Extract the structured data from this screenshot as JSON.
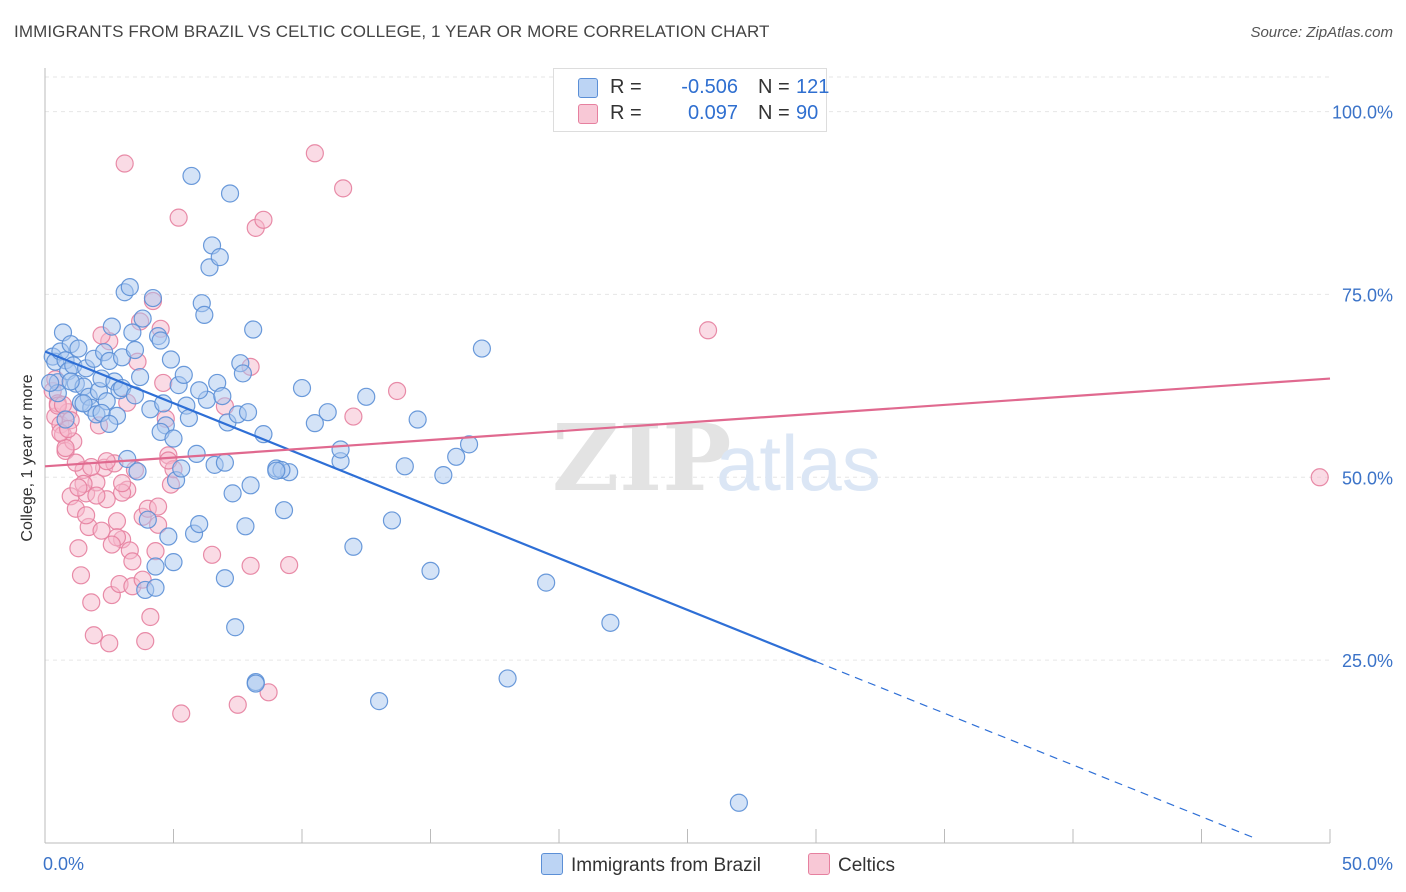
{
  "header": {
    "title": "IMMIGRANTS FROM BRAZIL VS CELTIC COLLEGE, 1 YEAR OR MORE CORRELATION CHART",
    "source": "Source: ZipAtlas.com"
  },
  "watermark": {
    "part1": "ZIP",
    "part2": "atlas"
  },
  "colors": {
    "blue_fill": "#a9c7ef",
    "blue_stroke": "#5b8fd6",
    "blue_line": "#2e6fd6",
    "pink_fill": "#f5b8cb",
    "pink_stroke": "#e6809f",
    "pink_line": "#e0698f",
    "tick_label": "#3b73c8",
    "grid": "#e6e6e6"
  },
  "legend": {
    "r_label": "R =",
    "n_label": "N =",
    "rows": [
      {
        "r": "-0.506",
        "n": "121"
      },
      {
        "r": "0.097",
        "n": "90"
      }
    ]
  },
  "chart_data": {
    "type": "scatter",
    "title": "IMMIGRANTS FROM BRAZIL VS CELTIC COLLEGE, 1 YEAR OR MORE CORRELATION CHART",
    "xlabel": "",
    "ylabel": "College, 1 year or more",
    "xlim": [
      0,
      50
    ],
    "ylim": [
      0,
      105
    ],
    "x_tick_labels": [
      "0.0%",
      "50.0%"
    ],
    "y_ticks": [
      25,
      50,
      75,
      100
    ],
    "y_tick_labels": [
      "25.0%",
      "50.0%",
      "75.0%",
      "100.0%"
    ],
    "grid": true,
    "legend_position": "top-center",
    "series": [
      {
        "name": "Immigrants from Brazil",
        "r": -0.506,
        "n": 121,
        "trend": {
          "x0": 0,
          "y0": 67.2,
          "x1": 30,
          "y1": 24.8,
          "dashed_to_x": 47
        },
        "points": [
          [
            0.3,
            66.5
          ],
          [
            0.4,
            65.8
          ],
          [
            0.5,
            63.0
          ],
          [
            0.6,
            67.2
          ],
          [
            0.7,
            69.8
          ],
          [
            0.8,
            66.0
          ],
          [
            0.9,
            64.5
          ],
          [
            1.0,
            68.2
          ],
          [
            1.1,
            65.3
          ],
          [
            1.2,
            62.8
          ],
          [
            1.3,
            67.6
          ],
          [
            1.4,
            60.2
          ],
          [
            1.5,
            62.4
          ],
          [
            1.6,
            64.9
          ],
          [
            1.7,
            61.0
          ],
          [
            1.8,
            59.5
          ],
          [
            1.9,
            66.2
          ],
          [
            2.0,
            58.6
          ],
          [
            2.1,
            61.8
          ],
          [
            2.2,
            63.5
          ],
          [
            2.3,
            67.1
          ],
          [
            2.4,
            60.4
          ],
          [
            2.5,
            65.9
          ],
          [
            2.6,
            70.6
          ],
          [
            2.7,
            63.1
          ],
          [
            2.8,
            58.4
          ],
          [
            2.9,
            61.9
          ],
          [
            3.0,
            66.4
          ],
          [
            3.1,
            75.3
          ],
          [
            3.2,
            52.5
          ],
          [
            3.3,
            76.0
          ],
          [
            3.4,
            69.8
          ],
          [
            3.5,
            67.4
          ],
          [
            3.6,
            50.8
          ],
          [
            3.7,
            63.7
          ],
          [
            3.8,
            71.7
          ],
          [
            3.9,
            34.6
          ],
          [
            4.0,
            44.2
          ],
          [
            4.1,
            59.3
          ],
          [
            4.2,
            74.5
          ],
          [
            4.3,
            37.8
          ],
          [
            4.4,
            69.3
          ],
          [
            4.5,
            68.7
          ],
          [
            4.6,
            60.1
          ],
          [
            4.7,
            57.1
          ],
          [
            4.8,
            41.9
          ],
          [
            4.9,
            66.1
          ],
          [
            5.0,
            38.4
          ],
          [
            5.1,
            49.6
          ],
          [
            5.2,
            62.6
          ],
          [
            5.3,
            51.2
          ],
          [
            5.4,
            64.0
          ],
          [
            5.5,
            59.8
          ],
          [
            5.6,
            58.1
          ],
          [
            5.7,
            91.2
          ],
          [
            5.8,
            42.3
          ],
          [
            5.9,
            53.2
          ],
          [
            6.0,
            43.6
          ],
          [
            6.1,
            73.8
          ],
          [
            6.2,
            72.2
          ],
          [
            6.3,
            60.6
          ],
          [
            6.4,
            78.7
          ],
          [
            6.5,
            81.7
          ],
          [
            6.6,
            51.7
          ],
          [
            6.7,
            62.9
          ],
          [
            6.8,
            80.1
          ],
          [
            6.9,
            61.1
          ],
          [
            7.0,
            36.2
          ],
          [
            7.1,
            57.5
          ],
          [
            7.2,
            88.8
          ],
          [
            7.3,
            47.8
          ],
          [
            7.4,
            29.5
          ],
          [
            7.5,
            58.6
          ],
          [
            7.6,
            65.6
          ],
          [
            7.7,
            64.2
          ],
          [
            7.8,
            43.3
          ],
          [
            7.9,
            58.9
          ],
          [
            8.0,
            48.9
          ],
          [
            8.1,
            70.2
          ],
          [
            8.2,
            22.0
          ],
          [
            8.5,
            55.9
          ],
          [
            9.0,
            51.2
          ],
          [
            9.3,
            45.5
          ],
          [
            9.5,
            50.7
          ],
          [
            10.0,
            62.2
          ],
          [
            10.5,
            57.4
          ],
          [
            11.0,
            58.9
          ],
          [
            11.5,
            52.2
          ],
          [
            12.0,
            40.5
          ],
          [
            12.5,
            61.0
          ],
          [
            13.0,
            19.4
          ],
          [
            13.5,
            44.1
          ],
          [
            14.0,
            51.5
          ],
          [
            14.5,
            57.9
          ],
          [
            15.0,
            37.2
          ],
          [
            15.5,
            50.3
          ],
          [
            16.0,
            52.8
          ],
          [
            16.5,
            54.5
          ],
          [
            17.0,
            67.6
          ],
          [
            18.0,
            22.5
          ],
          [
            19.5,
            35.6
          ],
          [
            22.0,
            30.1
          ],
          [
            27.0,
            5.5
          ],
          [
            3.0,
            62.2
          ],
          [
            1.5,
            60.1
          ],
          [
            0.8,
            57.9
          ],
          [
            2.2,
            58.8
          ],
          [
            4.5,
            56.2
          ],
          [
            6.0,
            61.9
          ],
          [
            7.0,
            52.0
          ],
          [
            11.5,
            53.8
          ],
          [
            9.2,
            51.0
          ],
          [
            5.0,
            55.3
          ],
          [
            0.5,
            61.5
          ],
          [
            1.0,
            63.1
          ],
          [
            2.5,
            57.3
          ],
          [
            3.5,
            61.2
          ],
          [
            4.3,
            34.9
          ],
          [
            9.0,
            50.9
          ],
          [
            8.2,
            21.8
          ],
          [
            0.2,
            62.9
          ]
        ]
      },
      {
        "name": "Celtics",
        "r": 0.097,
        "n": 90,
        "trend": {
          "x0": 0,
          "y0": 51.5,
          "x1": 50,
          "y1": 63.5
        },
        "points": [
          [
            0.3,
            61.8
          ],
          [
            0.4,
            58.3
          ],
          [
            0.5,
            60.1
          ],
          [
            0.6,
            57.2
          ],
          [
            0.7,
            55.8
          ],
          [
            0.8,
            53.6
          ],
          [
            0.9,
            58.9
          ],
          [
            1.0,
            47.4
          ],
          [
            1.1,
            54.9
          ],
          [
            1.2,
            45.7
          ],
          [
            1.3,
            40.3
          ],
          [
            1.4,
            36.6
          ],
          [
            1.5,
            51.0
          ],
          [
            1.6,
            47.8
          ],
          [
            1.7,
            43.2
          ],
          [
            1.8,
            32.9
          ],
          [
            1.9,
            28.4
          ],
          [
            2.0,
            49.3
          ],
          [
            2.1,
            57.1
          ],
          [
            2.2,
            42.7
          ],
          [
            2.3,
            51.3
          ],
          [
            2.4,
            47.0
          ],
          [
            2.5,
            27.3
          ],
          [
            2.6,
            33.9
          ],
          [
            2.7,
            51.9
          ],
          [
            2.8,
            44.0
          ],
          [
            2.9,
            35.4
          ],
          [
            3.0,
            41.5
          ],
          [
            3.1,
            92.9
          ],
          [
            3.2,
            48.3
          ],
          [
            3.3,
            40.0
          ],
          [
            3.4,
            35.1
          ],
          [
            3.5,
            51.0
          ],
          [
            3.6,
            65.8
          ],
          [
            3.7,
            71.3
          ],
          [
            3.8,
            44.6
          ],
          [
            3.9,
            27.6
          ],
          [
            4.0,
            45.7
          ],
          [
            4.1,
            30.9
          ],
          [
            4.2,
            74.1
          ],
          [
            4.3,
            39.9
          ],
          [
            4.4,
            43.5
          ],
          [
            4.5,
            70.3
          ],
          [
            4.6,
            62.9
          ],
          [
            4.7,
            58.0
          ],
          [
            4.8,
            53.0
          ],
          [
            4.9,
            49.0
          ],
          [
            5.0,
            51.1
          ],
          [
            5.2,
            85.5
          ],
          [
            5.3,
            17.7
          ],
          [
            6.5,
            39.4
          ],
          [
            7.0,
            59.7
          ],
          [
            7.5,
            18.9
          ],
          [
            8.0,
            37.9
          ],
          [
            8.2,
            84.1
          ],
          [
            8.5,
            85.2
          ],
          [
            8.7,
            20.6
          ],
          [
            8.0,
            65.1
          ],
          [
            9.5,
            38.0
          ],
          [
            10.5,
            94.3
          ],
          [
            11.6,
            89.5
          ],
          [
            12.0,
            58.3
          ],
          [
            13.7,
            61.8
          ],
          [
            25.8,
            70.1
          ],
          [
            49.6,
            50.0
          ],
          [
            0.5,
            59.8
          ],
          [
            1.2,
            52.0
          ],
          [
            2.0,
            47.5
          ],
          [
            2.5,
            68.6
          ],
          [
            3.0,
            47.9
          ],
          [
            0.8,
            54.0
          ],
          [
            1.5,
            49.1
          ],
          [
            3.2,
            60.2
          ],
          [
            2.8,
            41.8
          ],
          [
            1.0,
            57.8
          ],
          [
            0.6,
            56.1
          ],
          [
            2.2,
            69.4
          ],
          [
            3.8,
            36.0
          ],
          [
            4.4,
            46.0
          ],
          [
            3.0,
            49.2
          ],
          [
            1.8,
            51.4
          ],
          [
            2.6,
            40.8
          ],
          [
            0.4,
            63.4
          ],
          [
            1.3,
            48.6
          ],
          [
            3.4,
            38.5
          ],
          [
            0.9,
            56.6
          ],
          [
            2.4,
            52.2
          ],
          [
            1.6,
            44.8
          ],
          [
            0.7,
            59.9
          ],
          [
            4.8,
            52.3
          ]
        ]
      }
    ]
  },
  "bottom_legend": {
    "items": [
      {
        "label": "Immigrants from Brazil"
      },
      {
        "label": "Celtics"
      }
    ]
  }
}
